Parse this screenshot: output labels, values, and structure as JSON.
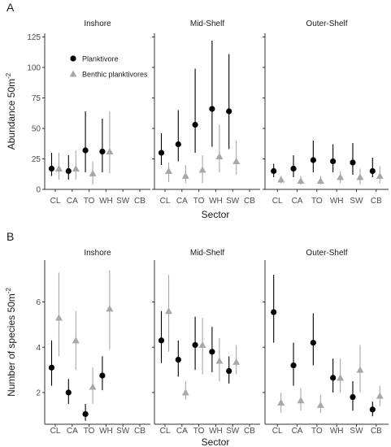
{
  "colors": {
    "planktivore": "#000000",
    "benthic": "#a8a8a8",
    "axis": "#333333",
    "text": "#1a1a1a"
  },
  "chart_data": [
    {
      "panel_label": "A",
      "type": "scatter",
      "ylabel": "Abundance 50m",
      "ylabel_sup": "-2",
      "xlabel": "Sector",
      "ylim": [
        0,
        128
      ],
      "yticks": [
        0,
        25,
        50,
        75,
        100,
        125
      ],
      "grid": false,
      "legend_placement": "top-left",
      "legend": [
        "Planktivore",
        "Benthic planktivores"
      ],
      "facets": [
        {
          "title": "Inshore",
          "categories": [
            "CL",
            "CA",
            "TO",
            "WH",
            "SW",
            "CB"
          ],
          "series": [
            {
              "name": "Planktivore",
              "marker": "circle",
              "points": [
                [
                  0,
                  17,
                  11,
                  30
                ],
                [
                  1,
                  15,
                  8,
                  28
                ],
                [
                  2,
                  32,
                  14,
                  64
                ],
                [
                  3,
                  31,
                  14,
                  58
                ],
                null,
                null
              ]
            },
            {
              "name": "Benthic planktivores",
              "marker": "triangle",
              "points": [
                [
                  0,
                  17,
                  8,
                  30
                ],
                [
                  1,
                  17,
                  8,
                  32
                ],
                [
                  2,
                  13,
                  4,
                  23
                ],
                [
                  3,
                  31,
                  13,
                  64
                ],
                null,
                null
              ]
            }
          ]
        },
        {
          "title": "Mid-Shelf",
          "categories": [
            "CL",
            "CA",
            "TO",
            "WH",
            "SW",
            "CB"
          ],
          "series": [
            {
              "name": "Planktivore",
              "marker": "circle",
              "points": [
                [
                  0,
                  30,
                  20,
                  46
                ],
                [
                  1,
                  37,
                  23,
                  65
                ],
                [
                  2,
                  53,
                  30,
                  99
                ],
                [
                  3,
                  66,
                  35,
                  122
                ],
                [
                  4,
                  64,
                  33,
                  111
                ],
                null
              ]
            },
            {
              "name": "Benthic planktivores",
              "marker": "triangle",
              "points": [
                [
                  0,
                  15,
                  6,
                  22
                ],
                [
                  1,
                  11,
                  5,
                  20
                ],
                [
                  2,
                  16,
                  5,
                  28
                ],
                [
                  3,
                  27,
                  14,
                  53
                ],
                [
                  4,
                  23,
                  12,
                  40
                ],
                null
              ]
            }
          ]
        },
        {
          "title": "Outer-Shelf",
          "categories": [
            "CL",
            "CA",
            "TO",
            "WH",
            "SW",
            "CB"
          ],
          "series": [
            {
              "name": "Planktivore",
              "marker": "circle",
              "points": [
                [
                  0,
                  15,
                  10,
                  21
                ],
                [
                  1,
                  17,
                  10,
                  28
                ],
                [
                  2,
                  24,
                  14,
                  40
                ],
                [
                  3,
                  23,
                  14,
                  37
                ],
                [
                  4,
                  22,
                  12,
                  38
                ],
                [
                  5,
                  15,
                  10,
                  26
                ]
              ]
            },
            {
              "name": "Benthic planktivores",
              "marker": "triangle",
              "points": [
                [
                  0,
                  8,
                  5,
                  11
                ],
                [
                  1,
                  7,
                  4,
                  11
                ],
                [
                  2,
                  7,
                  4,
                  11
                ],
                [
                  3,
                  10,
                  5,
                  15
                ],
                [
                  4,
                  10,
                  4,
                  17
                ],
                [
                  5,
                  11,
                  5,
                  19
                ]
              ]
            }
          ]
        }
      ]
    },
    {
      "panel_label": "B",
      "type": "scatter",
      "ylabel": "Number of species 50m",
      "ylabel_sup": "-2",
      "xlabel": "Sector",
      "ylim": [
        0.6,
        7.85
      ],
      "yticks": [
        2,
        4,
        6
      ],
      "grid": false,
      "facets": [
        {
          "title": "Inshore",
          "categories": [
            "CL",
            "CA",
            "TO",
            "WH",
            "SW",
            "CB"
          ],
          "series": [
            {
              "name": "Planktivore",
              "marker": "circle",
              "points": [
                [
                  0,
                  3.1,
                  2.3,
                  4.3
                ],
                [
                  1,
                  2.0,
                  1.5,
                  2.6
                ],
                [
                  2,
                  1.05,
                  0.75,
                  1.5
                ],
                [
                  3,
                  2.75,
                  2.1,
                  3.6
                ],
                null,
                null
              ]
            },
            {
              "name": "Benthic planktivores",
              "marker": "triangle",
              "points": [
                [
                  0,
                  5.3,
                  3.6,
                  7.3
                ],
                [
                  1,
                  4.3,
                  3.0,
                  5.6
                ],
                [
                  2,
                  2.25,
                  1.5,
                  3.1
                ],
                [
                  3,
                  5.7,
                  3.9,
                  7.4
                ],
                null,
                null
              ]
            }
          ]
        },
        {
          "title": "Mid-Shelf",
          "categories": [
            "CL",
            "CA",
            "TO",
            "WH",
            "SW",
            "CB"
          ],
          "series": [
            {
              "name": "Planktivore",
              "marker": "circle",
              "points": [
                [
                  0,
                  4.3,
                  3.3,
                  5.6
                ],
                [
                  1,
                  3.45,
                  2.7,
                  4.3
                ],
                [
                  2,
                  4.1,
                  3.0,
                  5.35
                ],
                [
                  3,
                  3.8,
                  2.9,
                  4.9
                ],
                [
                  4,
                  2.95,
                  2.4,
                  3.6
                ],
                null
              ]
            },
            {
              "name": "Benthic planktivores",
              "marker": "triangle",
              "points": [
                [
                  0,
                  5.6,
                  3.8,
                  7.2
                ],
                [
                  1,
                  2.0,
                  1.7,
                  2.5
                ],
                [
                  2,
                  4.1,
                  2.8,
                  5.3
                ],
                [
                  3,
                  3.4,
                  2.5,
                  4.4
                ],
                [
                  4,
                  3.35,
                  2.8,
                  4.1
                ],
                null
              ]
            }
          ]
        },
        {
          "title": "Outer-Shelf",
          "categories": [
            "CL",
            "CA",
            "TO",
            "WH",
            "SW",
            "CB"
          ],
          "series": [
            {
              "name": "Planktivore",
              "marker": "circle",
              "points": [
                [
                  0,
                  5.55,
                  4.2,
                  7.2
                ],
                [
                  1,
                  3.2,
                  2.3,
                  4.2
                ],
                [
                  2,
                  4.2,
                  3.2,
                  5.5
                ],
                [
                  3,
                  2.65,
                  2.0,
                  3.5
                ],
                [
                  4,
                  1.8,
                  1.2,
                  2.5
                ],
                [
                  5,
                  1.25,
                  0.95,
                  1.6
                ]
              ]
            },
            {
              "name": "Benthic planktivores",
              "marker": "triangle",
              "points": [
                [
                  0,
                  1.55,
                  1.1,
                  2.0
                ],
                [
                  1,
                  1.65,
                  1.2,
                  2.2
                ],
                [
                  2,
                  1.45,
                  1.1,
                  1.9
                ],
                [
                  3,
                  2.65,
                  2.0,
                  3.5
                ],
                [
                  4,
                  3.0,
                  2.0,
                  4.1
                ],
                [
                  5,
                  1.85,
                  1.4,
                  2.3
                ]
              ]
            }
          ]
        }
      ]
    }
  ]
}
